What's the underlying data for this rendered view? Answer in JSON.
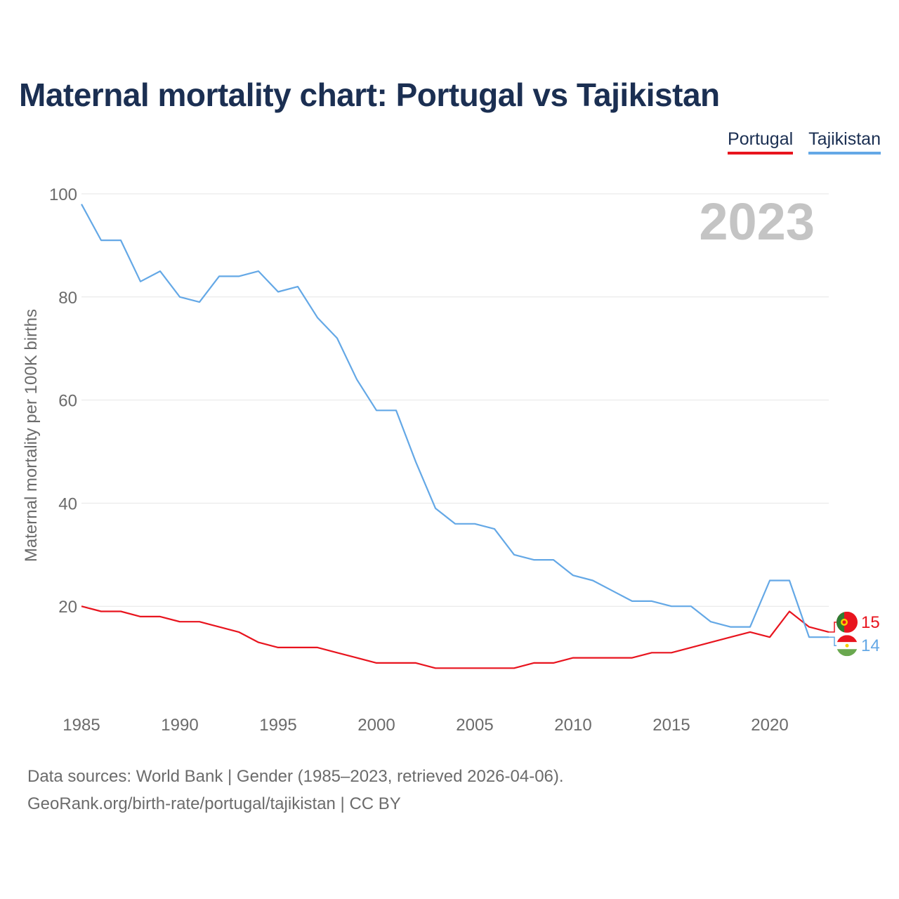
{
  "title": "Maternal mortality chart: Portugal vs Tajikistan",
  "legend": [
    {
      "label": "Portugal",
      "color": "#e8141e"
    },
    {
      "label": "Tajikistan",
      "color": "#64a8e6"
    }
  ],
  "year_watermark": "2023",
  "source_line1": "Data sources: World Bank | Gender (1985–2023, retrieved 2026-04-06).",
  "source_line2": "GeoRank.org/birth-rate/portugal/tajikistan | CC BY",
  "chart_data": {
    "type": "line",
    "title": "Maternal mortality chart: Portugal vs Tajikistan",
    "xlabel": "",
    "ylabel": "Maternal mortality per 100K births",
    "xlim": [
      1985,
      2023
    ],
    "ylim": [
      0,
      100
    ],
    "xticks": [
      1985,
      1990,
      1995,
      2000,
      2005,
      2010,
      2015,
      2020
    ],
    "yticks": [
      20,
      40,
      60,
      80,
      100
    ],
    "x": [
      1985,
      1986,
      1987,
      1988,
      1989,
      1990,
      1991,
      1992,
      1993,
      1994,
      1995,
      1996,
      1997,
      1998,
      1999,
      2000,
      2001,
      2002,
      2003,
      2004,
      2005,
      2006,
      2007,
      2008,
      2009,
      2010,
      2011,
      2012,
      2013,
      2014,
      2015,
      2016,
      2017,
      2018,
      2019,
      2020,
      2021,
      2022,
      2023
    ],
    "series": [
      {
        "name": "Portugal",
        "color": "#e8141e",
        "end_label": "15",
        "values": [
          20,
          19,
          19,
          18,
          18,
          17,
          17,
          16,
          15,
          13,
          12,
          12,
          12,
          11,
          10,
          9,
          9,
          9,
          8,
          8,
          8,
          8,
          8,
          9,
          9,
          10,
          10,
          10,
          10,
          11,
          11,
          12,
          13,
          14,
          15,
          14,
          19,
          16,
          15
        ]
      },
      {
        "name": "Tajikistan",
        "color": "#64a8e6",
        "end_label": "14",
        "values": [
          98,
          91,
          91,
          83,
          85,
          80,
          79,
          84,
          84,
          85,
          81,
          82,
          76,
          72,
          64,
          58,
          58,
          48,
          39,
          36,
          36,
          35,
          30,
          29,
          29,
          26,
          25,
          23,
          21,
          21,
          20,
          20,
          17,
          16,
          16,
          25,
          25,
          14,
          14
        ]
      }
    ]
  }
}
